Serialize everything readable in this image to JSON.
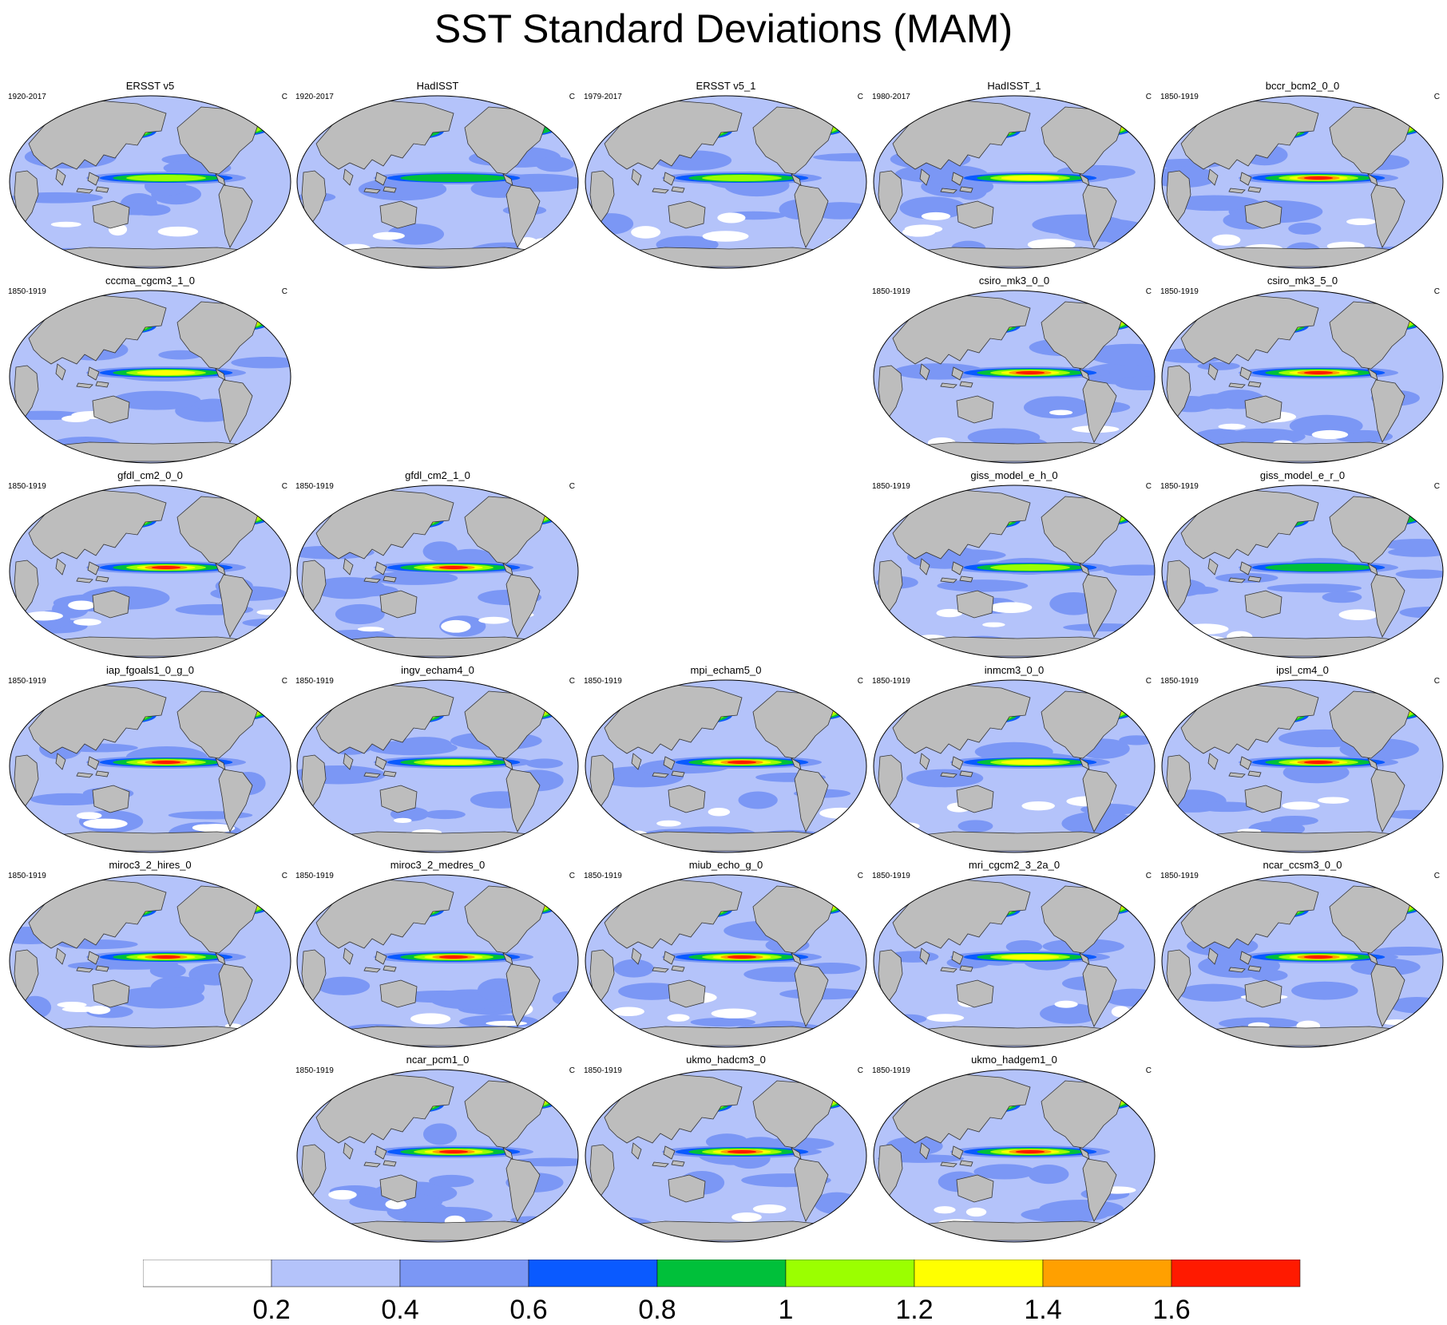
{
  "title": "SST Standard Deviations (MAM)",
  "units": "C",
  "land_color": "#bdbdbd",
  "contour_levels": [
    0.2,
    0.4,
    0.6,
    0.8,
    1,
    1.2,
    1.4,
    1.6
  ],
  "colors": [
    "#ffffff",
    "#b4c3fa",
    "#7b97f5",
    "#0a5aff",
    "#00c03a",
    "#9bff00",
    "#ffff00",
    "#ffa000",
    "#ff1a00"
  ],
  "colorbar_labels": [
    "0.2",
    "0.4",
    "0.6",
    "0.8",
    "1",
    "1.2",
    "1.4",
    "1.6"
  ],
  "chart_data": {
    "type": "heatmap",
    "title": "SST Standard Deviations (MAM)",
    "variable": "SST standard deviation",
    "season": "MAM",
    "units": "C",
    "colorbar": {
      "levels": [
        0.2,
        0.4,
        0.6,
        0.8,
        1,
        1.2,
        1.4,
        1.6
      ],
      "colors": [
        "#ffffff",
        "#b4c3fa",
        "#7b97f5",
        "#0a5aff",
        "#00c03a",
        "#9bff00",
        "#ffff00",
        "#ffa000",
        "#ff1a00"
      ]
    },
    "panels": [
      {
        "name": "ERSST v5",
        "years": "1920-2017",
        "row": 0,
        "col": 0,
        "peak": 1.1
      },
      {
        "name": "HadISST",
        "years": "1920-2017",
        "row": 0,
        "col": 1,
        "peak": 0.9
      },
      {
        "name": "ERSST v5_1",
        "years": "1979-2017",
        "row": 0,
        "col": 2,
        "peak": 1.1
      },
      {
        "name": "HadISST_1",
        "years": "1980-2017",
        "row": 0,
        "col": 3,
        "peak": 1.2
      },
      {
        "name": "bccr_bcm2_0_0",
        "years": "1850-1919",
        "row": 0,
        "col": 4,
        "peak": 1.6
      },
      {
        "name": "cccma_cgcm3_1_0",
        "years": "1850-1919",
        "row": 1,
        "col": 0,
        "peak": 1.2
      },
      {
        "name": "csiro_mk3_0_0",
        "years": "1850-1919",
        "row": 1,
        "col": 3,
        "peak": 1.7
      },
      {
        "name": "csiro_mk3_5_0",
        "years": "1850-1919",
        "row": 1,
        "col": 4,
        "peak": 1.7
      },
      {
        "name": "gfdl_cm2_0_0",
        "years": "1850-1919",
        "row": 2,
        "col": 0,
        "peak": 1.7
      },
      {
        "name": "gfdl_cm2_1_0",
        "years": "1850-1919",
        "row": 2,
        "col": 1,
        "peak": 1.7
      },
      {
        "name": "giss_model_e_h_0",
        "years": "1850-1919",
        "row": 2,
        "col": 3,
        "peak": 1.0
      },
      {
        "name": "giss_model_e_r_0",
        "years": "1850-1919",
        "row": 2,
        "col": 4,
        "peak": 0.9
      },
      {
        "name": "iap_fgoals1_0_g_0",
        "years": "1850-1919",
        "row": 3,
        "col": 0,
        "peak": 1.7
      },
      {
        "name": "ingv_echam4_0",
        "years": "1850-1919",
        "row": 3,
        "col": 1,
        "peak": 1.2
      },
      {
        "name": "mpi_echam5_0",
        "years": "1850-1919",
        "row": 3,
        "col": 2,
        "peak": 1.7
      },
      {
        "name": "inmcm3_0_0",
        "years": "1850-1919",
        "row": 3,
        "col": 3,
        "peak": 1.3
      },
      {
        "name": "ipsl_cm4_0",
        "years": "1850-1919",
        "row": 3,
        "col": 4,
        "peak": 1.6
      },
      {
        "name": "miroc3_2_hires_0",
        "years": "1850-1919",
        "row": 4,
        "col": 0,
        "peak": 1.6
      },
      {
        "name": "miroc3_2_medres_0",
        "years": "1850-1919",
        "row": 4,
        "col": 1,
        "peak": 1.6
      },
      {
        "name": "miub_echo_g_0",
        "years": "1850-1919",
        "row": 4,
        "col": 2,
        "peak": 1.7
      },
      {
        "name": "mri_cgcm2_3_2a_0",
        "years": "1850-1919",
        "row": 4,
        "col": 3,
        "peak": 1.3
      },
      {
        "name": "ncar_ccsm3_0_0",
        "years": "1850-1919",
        "row": 4,
        "col": 4,
        "peak": 1.7
      },
      {
        "name": "ncar_pcm1_0",
        "years": "1850-1919",
        "row": 5,
        "col": 1,
        "peak": 1.7
      },
      {
        "name": "ukmo_hadcm3_0",
        "years": "1850-1919",
        "row": 5,
        "col": 2,
        "peak": 1.7
      },
      {
        "name": "ukmo_hadgem1_0",
        "years": "1850-1919",
        "row": 5,
        "col": 3,
        "peak": 1.7
      }
    ]
  }
}
